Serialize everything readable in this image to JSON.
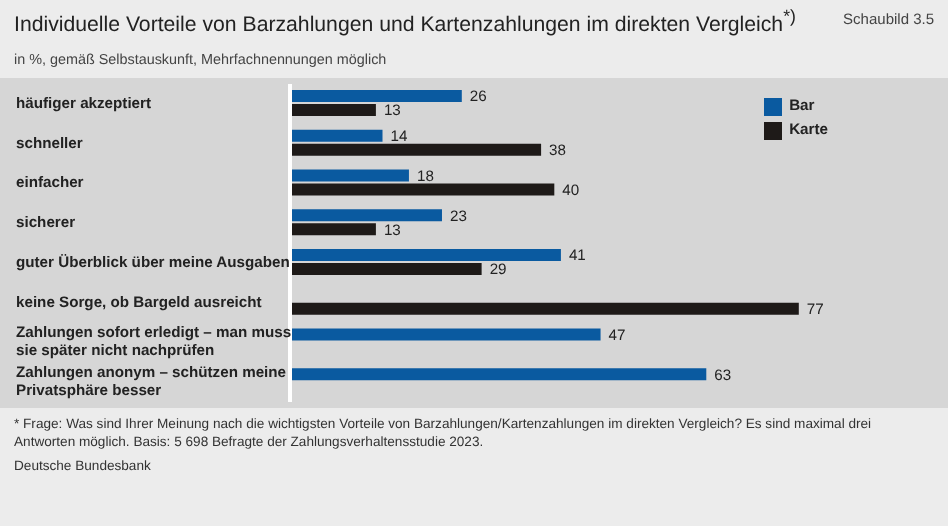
{
  "chart_data": {
    "type": "bar",
    "orientation": "horizontal",
    "title": "Individuelle Vorteile von Barzahlungen und Kartenzahlungen im direkten Vergleich$^{*)}$",
    "subtitle": "in %, gemäß Selbstauskunft, Mehrfachnennungen möglich",
    "categories": [
      "häufiger akzeptiert",
      "schneller",
      "einfacher",
      "sicherer",
      "guter Überblick über meine Ausgaben",
      "keine Sorge, ob Bargeld ausreicht",
      "Zahlungen sofort erledigt – man muss sie später nicht nachprüfen",
      "Zahlungen anonym – schützen meine Privatsphäre besser"
    ],
    "series": [
      {
        "name": "Bar",
        "color": "#0a5aa0",
        "values": [
          26,
          14,
          18,
          23,
          41,
          null,
          47,
          63
        ]
      },
      {
        "name": "Karte",
        "color": "#1e1a18",
        "values": [
          13,
          38,
          40,
          13,
          29,
          77,
          null,
          null
        ]
      }
    ],
    "data_labels": true,
    "legend": "top right",
    "grid": false,
    "annotations": [
      "Schaubild 3.5",
      "* Frage: Was sind Ihrer Meinung nach die wichtigsten Vorteile von Barzahlungen/Kartenzahlungen im direkten Vergleich? Es sind maximal drei Antworten möglich. Basis: 5 698 Befragte der Zahlungsverhaltensstudie 2023.",
      "Deutsche Bundesbank"
    ]
  }
}
